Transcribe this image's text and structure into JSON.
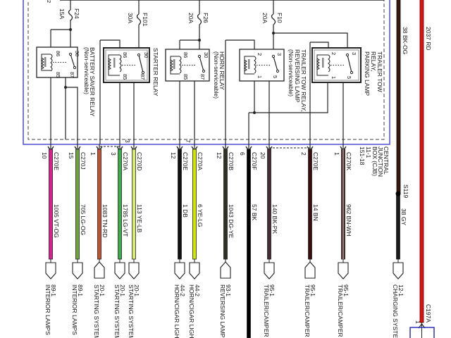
{
  "top_label": "2",
  "fuses": [
    {
      "id": "F24",
      "rating": "15A"
    },
    {
      "id": "F101",
      "rating": "30A"
    },
    {
      "id": "F26",
      "rating": "20A"
    },
    {
      "id": "F10",
      "rating": "20A"
    }
  ],
  "relays": [
    {
      "name": "BATTERY SAVER RELAY",
      "note": "(Non-serviceable)",
      "pins": [
        "86",
        "30",
        "85",
        "87"
      ]
    },
    {
      "name": "STARTER RELAY",
      "note": "",
      "pins": [
        "86",
        "30",
        "85",
        "87"
      ]
    },
    {
      "name": "HORN RELAY",
      "note": "(Non-serviceable)",
      "pins": [
        "86",
        "30",
        "85",
        "87"
      ]
    },
    {
      "name": "TRAILER TOW RELAY,",
      "name2": "REVERSING LAMP",
      "note": "(Non-serviceable)",
      "pins": [
        "2",
        "3",
        "1",
        "5"
      ]
    },
    {
      "name": "TRAILER TOW",
      "name2": "RELAY,",
      "name3": "PARKING LAMP",
      "note": "",
      "pins": [
        "2",
        "3",
        "1",
        "5"
      ]
    }
  ],
  "junction_box": {
    "line1": "CENTRAL",
    "line2": "JUNCTION",
    "line3": "BOX (CJB)",
    "page1": "11-1",
    "page2": "151-18"
  },
  "wires": [
    {
      "connector": "C270E",
      "pin": "10",
      "circuit": "1005 VT-OG",
      "color": "#d6208e",
      "dest_code": "89-1",
      "dest": "INTERIOR LAMPS"
    },
    {
      "connector": "C270J",
      "pin": "15",
      "circuit": "705 LG-OG",
      "color": "#6ea53c",
      "dest_code": "89-1",
      "dest": "INTERIOR LAMPS"
    },
    {
      "connector": "",
      "pin": "1",
      "circuit": "1083 TN-RD",
      "color": "#c6502c",
      "dest_code": "20-1",
      "dest": "STARTING SYSTEM"
    },
    {
      "connector": "C270A",
      "pin": "3",
      "circuit": "1785 LG-VT",
      "color": "#3daa4c",
      "dest_code": "20-1",
      "dest": "STARTING SYSTEM"
    },
    {
      "connector": "C270D",
      "pin": "3",
      "circuit": "113 YE-LB",
      "color": "#d8ec70",
      "dest_code": "20-1",
      "dest": "STARTING SYSTEM"
    },
    {
      "connector": "C270E",
      "pin": "12",
      "circuit": "1 DB",
      "color": "#111111",
      "dest_code": "44-2",
      "dest": "HORN/CIGAR LIGHT"
    },
    {
      "connector": "C270A",
      "pin": "7",
      "circuit": "6 YE-LG",
      "color": "#cfe800",
      "dest_code": "44-2",
      "dest": "HORN/CIGAR LIGHT"
    },
    {
      "connector": "C270B",
      "pin": "12",
      "circuit": "1043 DG-YE",
      "color": "#2e3020",
      "dest_code": "93-1",
      "dest": "REVERSING LAMPS"
    },
    {
      "connector": "C270F",
      "pin": "6",
      "circuit": "57 BK",
      "color": "#000000",
      "dest_code": "",
      "dest": ""
    },
    {
      "connector": "",
      "pin": "20",
      "circuit": "140 BK-PK",
      "color": "#4a2a32",
      "dest_code": "95-1",
      "dest": "TRAILER/CAMPER A"
    },
    {
      "connector": "C270E",
      "pin": "2",
      "circuit": "14 BN",
      "color": "#3a0e0e",
      "dest_code": "95-1",
      "dest": "TRAILER/CAMPER A"
    },
    {
      "connector": "C270K",
      "pin": "1",
      "circuit": "962 BN-WH",
      "color": "#4a2222",
      "dest_code": "95-1",
      "dest": "TRAILER/CAMPER A"
    },
    {
      "connector": "",
      "pin": "",
      "circuit": "38 GY",
      "color": "#1a1a1a",
      "dest_code": "12-1",
      "dest": "CHARGING SYSTEM"
    }
  ],
  "right": {
    "upper_circuit": "38 BK-OG",
    "upper_color": "#3a1a10",
    "splice": "S119",
    "red_circuit": "2037 RD",
    "red_color": "#e01010",
    "red_connector": "C197A",
    "red_pin": "1"
  },
  "colors": {
    "frame": "#4a4ad0",
    "line": "#222222"
  }
}
